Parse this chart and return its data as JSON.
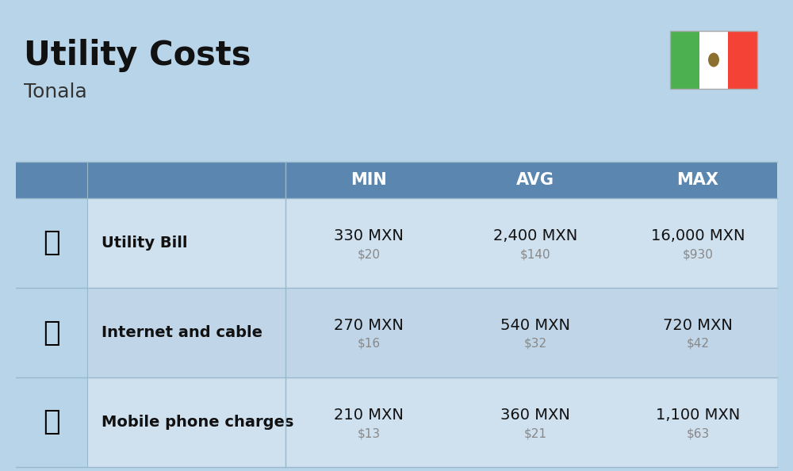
{
  "title": "Utility Costs",
  "subtitle": "Tonala",
  "background_color": "#b8d4e8",
  "header_bg_color": "#5b86b0",
  "header_text_color": "#ffffff",
  "row_colors": [
    "#cfe0ef",
    "#c0d6e8"
  ],
  "icon_col_bg": "#b8d4e8",
  "col_headers": [
    "MIN",
    "AVG",
    "MAX"
  ],
  "rows": [
    {
      "label": "Utility Bill",
      "min_mxn": "330 MXN",
      "min_usd": "$20",
      "avg_mxn": "2,400 MXN",
      "avg_usd": "$140",
      "max_mxn": "16,000 MXN",
      "max_usd": "$930"
    },
    {
      "label": "Internet and cable",
      "min_mxn": "270 MXN",
      "min_usd": "$16",
      "avg_mxn": "540 MXN",
      "avg_usd": "$32",
      "max_mxn": "720 MXN",
      "max_usd": "$42"
    },
    {
      "label": "Mobile phone charges",
      "min_mxn": "210 MXN",
      "min_usd": "$13",
      "avg_mxn": "360 MXN",
      "avg_usd": "$21",
      "max_mxn": "1,100 MXN",
      "max_usd": "$63"
    }
  ],
  "flag_green": "#4caf50",
  "flag_white": "#ffffff",
  "flag_red": "#f44336",
  "title_fontsize": 30,
  "subtitle_fontsize": 18,
  "header_fontsize": 15,
  "label_fontsize": 14,
  "value_fontsize": 14,
  "usd_fontsize": 11,
  "usd_color": "#888888",
  "divider_color": "#9ab8cc",
  "text_color": "#111111"
}
